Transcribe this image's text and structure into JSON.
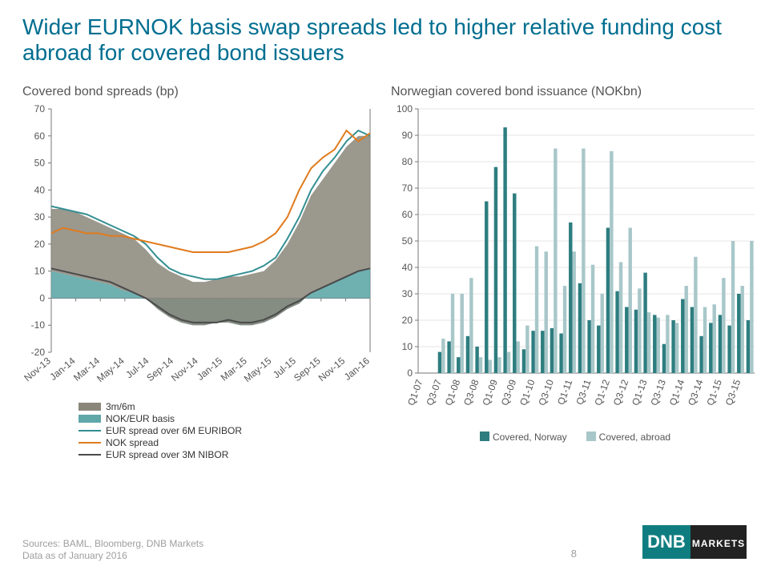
{
  "title": "Wider EURNOK basis swap spreads led to higher relative funding cost abroad for covered bond issuers",
  "footer_source": "Sources: BAML, Bloomberg, DNB Markets",
  "footer_date": "Data as of January 2016",
  "page_number": "8",
  "logo_text_top": "DNB",
  "logo_text_bottom": "MARKETS",
  "left_chart": {
    "title": "Covered bond spreads (bp)",
    "ylim": [
      -20,
      70
    ],
    "ytick_step": 10,
    "x_labels": [
      "Nov-13",
      "Jan-14",
      "Mar-14",
      "May-14",
      "Jul-14",
      "Sep-14",
      "Nov-14",
      "Jan-15",
      "Mar-15",
      "May-15",
      "Jul-15",
      "Sep-15",
      "Nov-15",
      "Jan-16"
    ],
    "colors": {
      "area_3m6m": "#8a867a",
      "area_nokeur": "#5fa7a9",
      "line_eur6m": "#338f92",
      "line_nokspr": "#e07b1d",
      "line_eur3m": "#4a4a4a",
      "grid": "#cccccc",
      "axis": "#777"
    },
    "series": {
      "stack_bottom": {
        "comment": "NOK/EUR basis – lower stacked area. Values shown are the top-of-band y.",
        "y": [
          10,
          9,
          8,
          7,
          6,
          5,
          3,
          2,
          0,
          -4,
          -7,
          -9,
          -10,
          -10,
          -9,
          -9,
          -10,
          -10,
          -9,
          -7,
          -4,
          -2,
          2,
          4,
          6,
          8,
          10,
          11
        ]
      },
      "stack_top": {
        "comment": "3m/6m on top of basis – top of grey band.",
        "y": [
          33,
          33,
          32,
          30,
          28,
          26,
          24,
          22,
          18,
          13,
          10,
          8,
          6,
          6,
          7,
          8,
          8,
          9,
          10,
          14,
          20,
          28,
          38,
          44,
          50,
          56,
          60,
          60
        ]
      },
      "eur6m": {
        "y": [
          34,
          33,
          32,
          31,
          29,
          27,
          25,
          23,
          20,
          15,
          11,
          9,
          8,
          7,
          7,
          8,
          9,
          10,
          12,
          15,
          22,
          30,
          40,
          47,
          52,
          58,
          62,
          60
        ]
      },
      "eur3m": {
        "y": [
          11,
          10,
          9,
          8,
          7,
          6,
          4,
          2,
          0,
          -3,
          -6,
          -8,
          -9,
          -9,
          -9,
          -8,
          -9,
          -9,
          -8,
          -6,
          -3,
          -1,
          2,
          4,
          6,
          8,
          10,
          11
        ]
      },
      "nokspr": {
        "y": [
          24,
          26,
          25,
          24,
          24,
          23,
          23,
          22,
          21,
          20,
          19,
          18,
          17,
          17,
          17,
          17,
          18,
          19,
          21,
          24,
          30,
          40,
          48,
          52,
          55,
          62,
          58,
          61
        ]
      }
    },
    "legend": [
      {
        "type": "rect",
        "color": "#8a867a",
        "label": "3m/6m"
      },
      {
        "type": "rect",
        "color": "#5fa7a9",
        "label": "NOK/EUR basis"
      },
      {
        "type": "line",
        "color": "#338f92",
        "label": "EUR spread over 6M EURIBOR"
      },
      {
        "type": "line",
        "color": "#e07b1d",
        "label": "NOK spread"
      },
      {
        "type": "line",
        "color": "#4a4a4a",
        "label": "EUR spread over 3M NIBOR"
      }
    ]
  },
  "right_chart": {
    "title": "Norwegian covered bond issuance (NOKbn)",
    "ylim": [
      0,
      100
    ],
    "ytick_step": 10,
    "x_labels": [
      "Q1-07",
      "Q3-07",
      "Q1-08",
      "Q3-08",
      "Q1-09",
      "Q3-09",
      "Q1-10",
      "Q3-10",
      "Q1-11",
      "Q3-11",
      "Q1-12",
      "Q3-12",
      "Q1-13",
      "Q3-13",
      "Q1-14",
      "Q3-14",
      "Q1-15",
      "Q3-15"
    ],
    "colors": {
      "norway": "#2d7d7f",
      "abroad": "#a8c7c9",
      "grid": "#cccccc",
      "axis": "#777"
    },
    "data": [
      {
        "q": "Q1-07",
        "n": 0,
        "a": 0
      },
      {
        "q": "Q2-07",
        "n": 0,
        "a": 0
      },
      {
        "q": "Q3-07",
        "n": 8,
        "a": 13
      },
      {
        "q": "Q4-07",
        "n": 12,
        "a": 30
      },
      {
        "q": "Q1-08",
        "n": 6,
        "a": 30
      },
      {
        "q": "Q2-08",
        "n": 14,
        "a": 36
      },
      {
        "q": "Q3-08",
        "n": 10,
        "a": 6
      },
      {
        "q": "Q4-08",
        "n": 65,
        "a": 5
      },
      {
        "q": "Q1-09",
        "n": 78,
        "a": 6
      },
      {
        "q": "Q2-09",
        "n": 93,
        "a": 8
      },
      {
        "q": "Q3-09",
        "n": 68,
        "a": 12
      },
      {
        "q": "Q4-09",
        "n": 9,
        "a": 18
      },
      {
        "q": "Q1-10",
        "n": 16,
        "a": 48
      },
      {
        "q": "Q2-10",
        "n": 16,
        "a": 46
      },
      {
        "q": "Q3-10",
        "n": 17,
        "a": 85
      },
      {
        "q": "Q4-10",
        "n": 15,
        "a": 33
      },
      {
        "q": "Q1-11",
        "n": 57,
        "a": 46
      },
      {
        "q": "Q2-11",
        "n": 34,
        "a": 85
      },
      {
        "q": "Q3-11",
        "n": 20,
        "a": 41
      },
      {
        "q": "Q4-11",
        "n": 18,
        "a": 30
      },
      {
        "q": "Q1-12",
        "n": 55,
        "a": 84
      },
      {
        "q": "Q2-12",
        "n": 31,
        "a": 42
      },
      {
        "q": "Q3-12",
        "n": 25,
        "a": 55
      },
      {
        "q": "Q4-12",
        "n": 24,
        "a": 32
      },
      {
        "q": "Q1-13",
        "n": 38,
        "a": 23
      },
      {
        "q": "Q2-13",
        "n": 22,
        "a": 21
      },
      {
        "q": "Q3-13",
        "n": 11,
        "a": 22
      },
      {
        "q": "Q4-13",
        "n": 20,
        "a": 19
      },
      {
        "q": "Q1-14",
        "n": 28,
        "a": 33
      },
      {
        "q": "Q2-14",
        "n": 25,
        "a": 44
      },
      {
        "q": "Q3-14",
        "n": 14,
        "a": 25
      },
      {
        "q": "Q4-14",
        "n": 19,
        "a": 26
      },
      {
        "q": "Q1-15",
        "n": 22,
        "a": 36
      },
      {
        "q": "Q2-15",
        "n": 18,
        "a": 50
      },
      {
        "q": "Q3-15",
        "n": 30,
        "a": 33
      },
      {
        "q": "Q4-15",
        "n": 20,
        "a": 50
      }
    ],
    "legend": [
      {
        "color": "#2d7d7f",
        "label": "Covered, Norway"
      },
      {
        "color": "#a8c7c9",
        "label": "Covered, abroad"
      }
    ]
  }
}
